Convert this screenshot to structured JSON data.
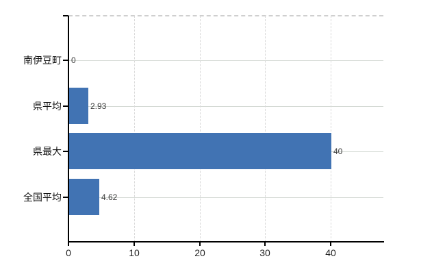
{
  "chart_data": {
    "type": "bar",
    "orientation": "horizontal",
    "title": "",
    "categories": [
      "南伊豆町",
      "県平均",
      "県最大",
      "全国平均"
    ],
    "values": [
      0,
      2.93,
      40,
      4.62
    ],
    "value_labels": [
      "0",
      "2.93",
      "40",
      "4.62"
    ],
    "x_ticks": [
      0,
      10,
      20,
      30,
      40
    ],
    "x_tick_labels": [
      "0",
      "10",
      "20",
      "30",
      "40"
    ],
    "xlim": [
      0,
      48
    ],
    "ylabel": "",
    "xlabel": "",
    "legend": "none",
    "grid": {
      "horizontal_gridlines": "solid, one per category row",
      "vertical_gridlines": "dashed, at ticks 10-40",
      "top_border": "dashed"
    },
    "colors": {
      "bar": "#4173b3",
      "h_gridline": "#d4d9d4",
      "v_gridline": "#d9d9d9",
      "top_border": "#cfcfcf",
      "axis": "#000000",
      "category_label": "#111111",
      "tick_label": "#222222",
      "value_label": "#3a3a3a",
      "background": "#ffffff"
    }
  }
}
